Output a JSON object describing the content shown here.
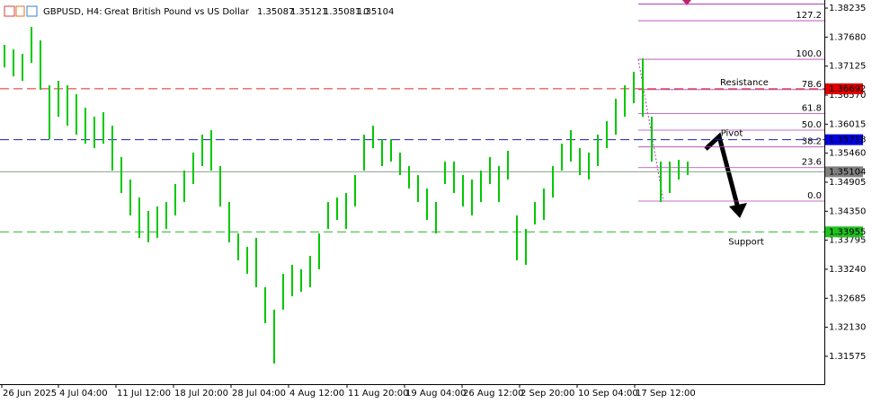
{
  "chart_data": {
    "type": "hlbar",
    "symbol": "GBPUSD, H4:",
    "description": "Great British Pound vs US Dollar",
    "ohlc": [
      1.35087,
      1.35121,
      1.35081,
      1.35104
    ],
    "spread": 0,
    "color": "#00c800",
    "ylim": [
      1.31042,
      1.3839
    ],
    "yticks": [
      1.38235,
      {
        "value": 1.3768,
        "label": "1.37680"
      },
      1.37125,
      {
        "value": 1.3657,
        "label": "1.36570"
      },
      1.36015,
      {
        "value": 1.3546,
        "label": "1.35460"
      },
      1.34905,
      {
        "value": 1.3435,
        "label": "1.34350"
      },
      1.33795,
      {
        "value": 1.3324,
        "label": "1.33240"
      },
      1.32685,
      {
        "value": 1.3213,
        "label": "1.32130"
      },
      1.31575
    ],
    "xlim": [
      -0.5,
      91.2
    ],
    "xticks": [
      {
        "value": -0.3,
        "label": "26 Jun 2025"
      },
      {
        "value": 6,
        "label": "4 Jul 04:00"
      },
      {
        "value": 12.4,
        "label": "11 Jul 12:00"
      },
      {
        "value": 18.8,
        "label": "18 Jul 20:00"
      },
      {
        "value": 25.2,
        "label": "28 Jul 04:00"
      },
      {
        "value": 31.6,
        "label": "4 Aug 12:00"
      },
      {
        "value": 38.1,
        "label": "11 Aug 20:00"
      },
      {
        "value": 44.5,
        "label": "19 Aug 04:00"
      },
      {
        "value": 50.9,
        "label": "26 Aug 12:00"
      },
      {
        "value": 57.3,
        "label": "2 Sep 20:00"
      },
      {
        "value": 63.7,
        "label": "10 Sep 04:00"
      },
      {
        "value": 70.1,
        "label": "17 Sep 12:00"
      }
    ],
    "high": [
      1.37531,
      1.37445,
      1.37359,
      1.37874,
      1.37617,
      1.36758,
      1.36844,
      1.36758,
      1.36587,
      1.36329,
      1.36157,
      1.36243,
      1.35986,
      1.35385,
      1.34956,
      1.34612,
      1.34355,
      1.3444,
      1.34526,
      1.3487,
      1.35127,
      1.35471,
      1.35814,
      1.359,
      1.35213,
      1.34526,
      1.33925,
      1.33668,
      1.33839,
      1.32895,
      1.32466,
      1.33153,
      1.33324,
      1.33239,
      1.33496,
      1.33925,
      1.34526,
      1.34612,
      1.34698,
      1.35041,
      1.35814,
      1.35986,
      1.35728,
      1.35728,
      1.35471,
      1.35213,
      1.35041,
      1.34784,
      1.34526,
      1.35299,
      1.35299,
      1.35041,
      1.34956,
      1.35127,
      1.35385,
      1.35213,
      1.35505,
      1.34269,
      1.34011,
      1.34526,
      1.34784,
      1.35213,
      1.35642,
      1.359,
      1.35556,
      1.35471,
      1.35814,
      1.36072,
      1.36501,
      1.36758,
      1.37016,
      1.37273,
      1.36157,
      1.35299,
      1.35299,
      1.35333,
      1.35299
    ],
    "low": [
      1.37102,
      1.3693,
      1.36844,
      1.37188,
      1.36673,
      1.35728,
      1.36157,
      1.35986,
      1.35814,
      1.35642,
      1.35556,
      1.35642,
      1.35127,
      1.34698,
      1.34269,
      1.33839,
      1.33754,
      1.33839,
      1.34011,
      1.34269,
      1.34526,
      1.3487,
      1.35213,
      1.35127,
      1.3444,
      1.33754,
      1.3341,
      1.33153,
      1.32895,
      1.32208,
      1.31436,
      1.32466,
      1.32723,
      1.32809,
      1.32895,
      1.33239,
      1.34011,
      1.34183,
      1.34011,
      1.3444,
      1.35127,
      1.35556,
      1.35213,
      1.35299,
      1.35041,
      1.34784,
      1.34526,
      1.34183,
      1.33925,
      1.3487,
      1.34698,
      1.3444,
      1.34269,
      1.34526,
      1.3487,
      1.34526,
      1.34956,
      1.3341,
      1.33324,
      1.34097,
      1.34183,
      1.34612,
      1.35127,
      1.35299,
      1.35041,
      1.34956,
      1.35213,
      1.35556,
      1.35814,
      1.36157,
      1.36415,
      1.36157,
      1.35299,
      1.34526,
      1.34698,
      1.34956,
      1.35041
    ],
    "levels": [
      {
        "name": "Resistance",
        "price": 1.36692,
        "color": "#e02828"
      },
      {
        "name": "Pivot",
        "price": 1.35718,
        "color": "#1c1cb4"
      },
      {
        "name": "Support",
        "price": 1.33955,
        "color": "#2eb82e"
      }
    ],
    "fibonacci": {
      "color": "#b040b0",
      "levels": [
        "127.2",
        "100.0",
        "78.6",
        "61.8",
        "50.0",
        "38.2",
        "23.6",
        "0.0"
      ],
      "prices": [
        1.37994,
        1.37256,
        1.36676,
        1.3622,
        1.359,
        1.3558,
        1.35184,
        1.34544
      ]
    }
  }
}
